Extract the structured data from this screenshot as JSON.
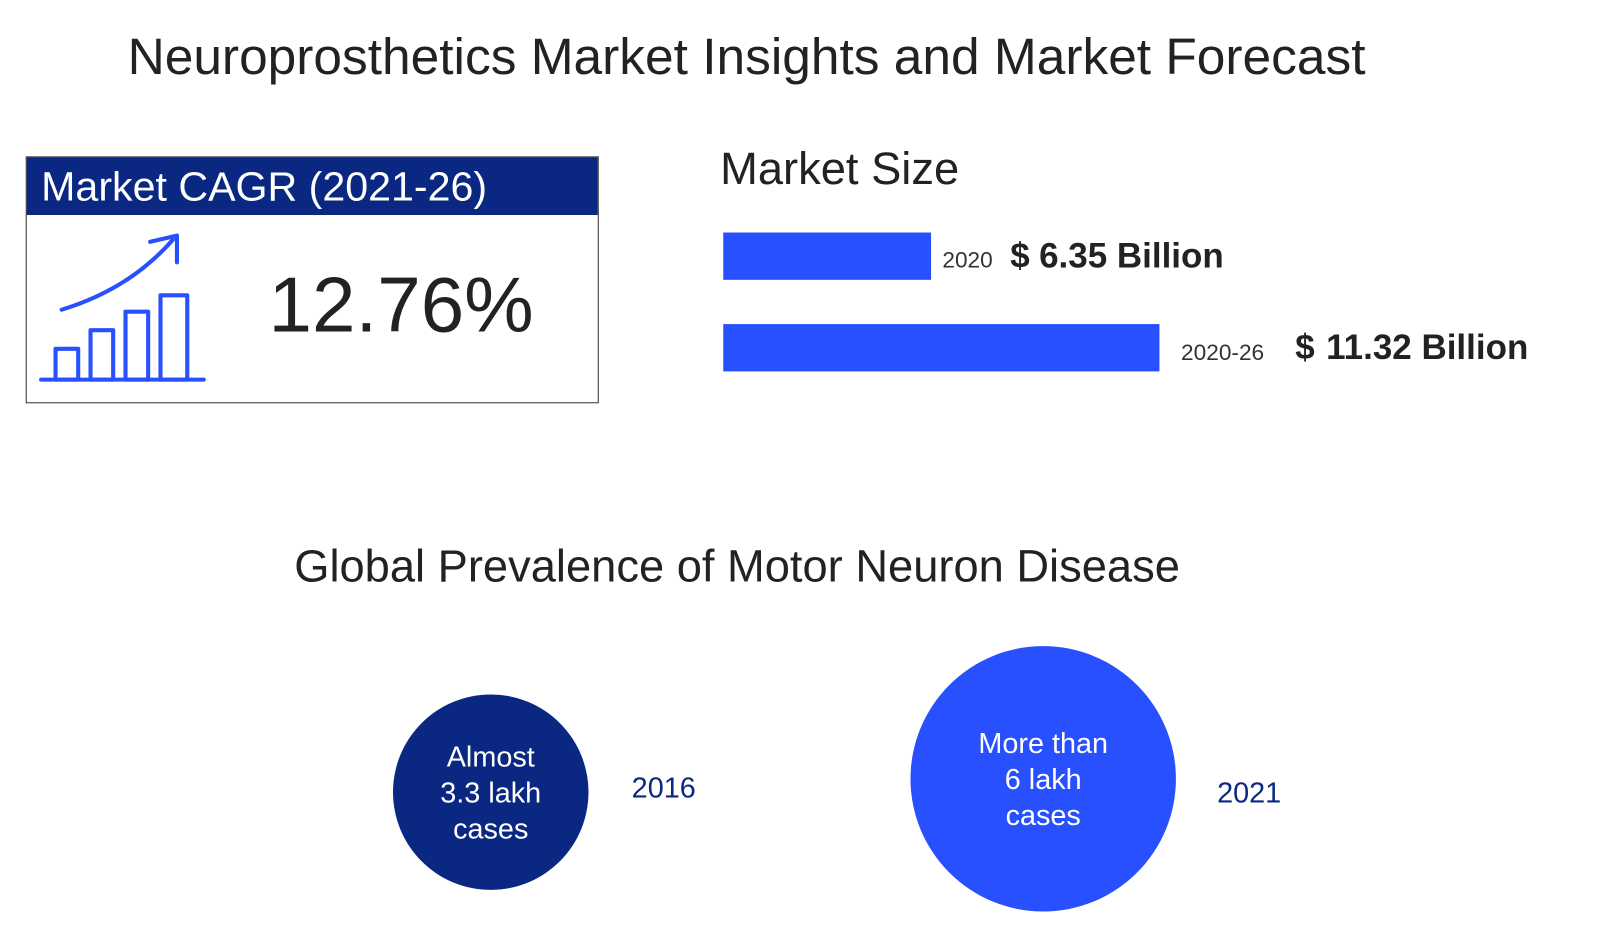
{
  "header": {
    "title": "Neuroprosthetics Market Insights and Market Forecast"
  },
  "cagr": {
    "label": "Market CAGR (2021-26)",
    "value": "12.76%"
  },
  "market_size": {
    "title": "Market Size",
    "items": [
      {
        "period": "2020",
        "currency": "$",
        "amount": "6.35 Billion"
      },
      {
        "period": "2020-26",
        "currency": "$",
        "amount": "11.32 Billion"
      }
    ]
  },
  "prevalence": {
    "title": "Global Prevalence of Motor Neuron Disease",
    "items": [
      {
        "lines": [
          "Almost",
          "3.3 lakh",
          "cases"
        ],
        "year": "2016"
      },
      {
        "lines": [
          "More than",
          "6 lakh",
          "cases"
        ],
        "year": "2021"
      }
    ]
  }
}
